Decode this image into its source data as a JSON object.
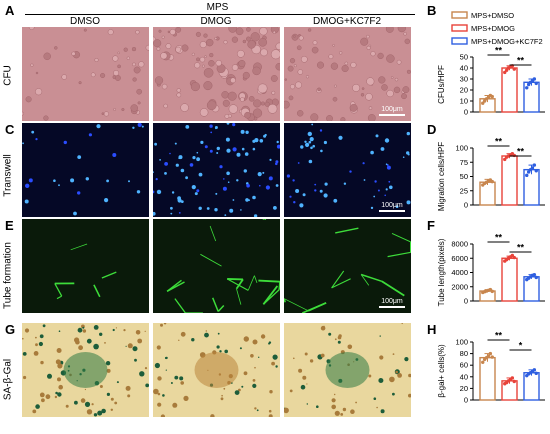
{
  "panel_labels": [
    "A",
    "B",
    "C",
    "D",
    "E",
    "F",
    "G",
    "H"
  ],
  "header": {
    "group": "MPS",
    "columns": [
      "DMSO",
      "DMOG",
      "DMOG+KC7F2"
    ]
  },
  "rows": [
    {
      "label": "CFU",
      "scale": "100μm"
    },
    {
      "label": "Transwell",
      "scale": "100μm"
    },
    {
      "label": "Tube formation",
      "scale": "100μm"
    },
    {
      "label": "SA-β-Gal",
      "scale": ""
    }
  ],
  "legend": [
    {
      "name": "MPS+DMSO",
      "color": "#c8864e"
    },
    {
      "name": "MPS+DMOG",
      "color": "#e8433a"
    },
    {
      "name": "MPS+DMOG+KC7F2",
      "color": "#2f5fe0"
    }
  ],
  "chart_data": [
    {
      "panel": "B",
      "type": "bar",
      "categories": [
        "MPS+DMSO",
        "MPS+DMOG",
        "MPS+DMOG+KC7F2"
      ],
      "values": [
        12,
        40,
        27
      ],
      "errors": [
        3,
        2,
        3
      ],
      "points": [
        [
          8,
          10,
          12,
          13,
          15,
          14
        ],
        [
          36,
          38,
          40,
          41,
          42,
          39
        ],
        [
          22,
          25,
          27,
          28,
          30,
          26
        ]
      ],
      "ylabel": "CFUs/HPF",
      "ylim": [
        0,
        50
      ],
      "yticks": [
        0,
        10,
        20,
        30,
        40,
        50
      ],
      "sig": [
        {
          "between": [
            0,
            1
          ],
          "label": "**"
        },
        {
          "between": [
            1,
            2
          ],
          "label": "**"
        }
      ]
    },
    {
      "panel": "D",
      "type": "bar",
      "categories": [
        "MPS+DMSO",
        "MPS+DMOG",
        "MPS+DMOG+KC7F2"
      ],
      "values": [
        40,
        86,
        62
      ],
      "errors": [
        5,
        4,
        8
      ],
      "points": [
        [
          35,
          38,
          40,
          42,
          44,
          41
        ],
        [
          80,
          84,
          86,
          88,
          90,
          87
        ],
        [
          52,
          58,
          62,
          65,
          70,
          60
        ]
      ],
      "ylabel": "Migration cells/HPF",
      "ylim": [
        0,
        100
      ],
      "yticks": [
        0,
        25,
        50,
        75,
        100
      ],
      "sig": [
        {
          "between": [
            0,
            1
          ],
          "label": "**"
        },
        {
          "between": [
            1,
            2
          ],
          "label": "**"
        }
      ]
    },
    {
      "panel": "F",
      "type": "bar",
      "categories": [
        "MPS+DMSO",
        "MPS+DMOG",
        "MPS+DMOG+KC7F2"
      ],
      "values": [
        1400,
        6000,
        3400
      ],
      "errors": [
        200,
        300,
        300
      ],
      "points": [
        [
          1200,
          1300,
          1400,
          1500,
          1600,
          1350
        ],
        [
          5600,
          5800,
          6000,
          6200,
          6400,
          6100
        ],
        [
          3000,
          3200,
          3400,
          3600,
          3700,
          3300
        ]
      ],
      "ylabel": "Tube length(pixels)",
      "ylim": [
        0,
        8000
      ],
      "yticks": [
        0,
        2000,
        4000,
        6000,
        8000
      ],
      "sig": [
        {
          "between": [
            0,
            1
          ],
          "label": "**"
        },
        {
          "between": [
            1,
            2
          ],
          "label": "**"
        }
      ]
    },
    {
      "panel": "H",
      "type": "bar",
      "categories": [
        "MPS+DMSO",
        "MPS+DMOG",
        "MPS+DMOG+KC7F2"
      ],
      "values": [
        73,
        33,
        47
      ],
      "errors": [
        7,
        5,
        5
      ],
      "points": [
        [
          65,
          70,
          73,
          76,
          80,
          74
        ],
        [
          28,
          30,
          33,
          35,
          38,
          32
        ],
        [
          42,
          45,
          47,
          49,
          52,
          46
        ]
      ],
      "ylabel": "β-gal+ cells(%)",
      "ylim": [
        0,
        100
      ],
      "yticks": [
        0,
        20,
        40,
        60,
        80,
        100
      ],
      "sig": [
        {
          "between": [
            0,
            1
          ],
          "label": "**"
        },
        {
          "between": [
            1,
            2
          ],
          "label": "*"
        }
      ]
    }
  ]
}
